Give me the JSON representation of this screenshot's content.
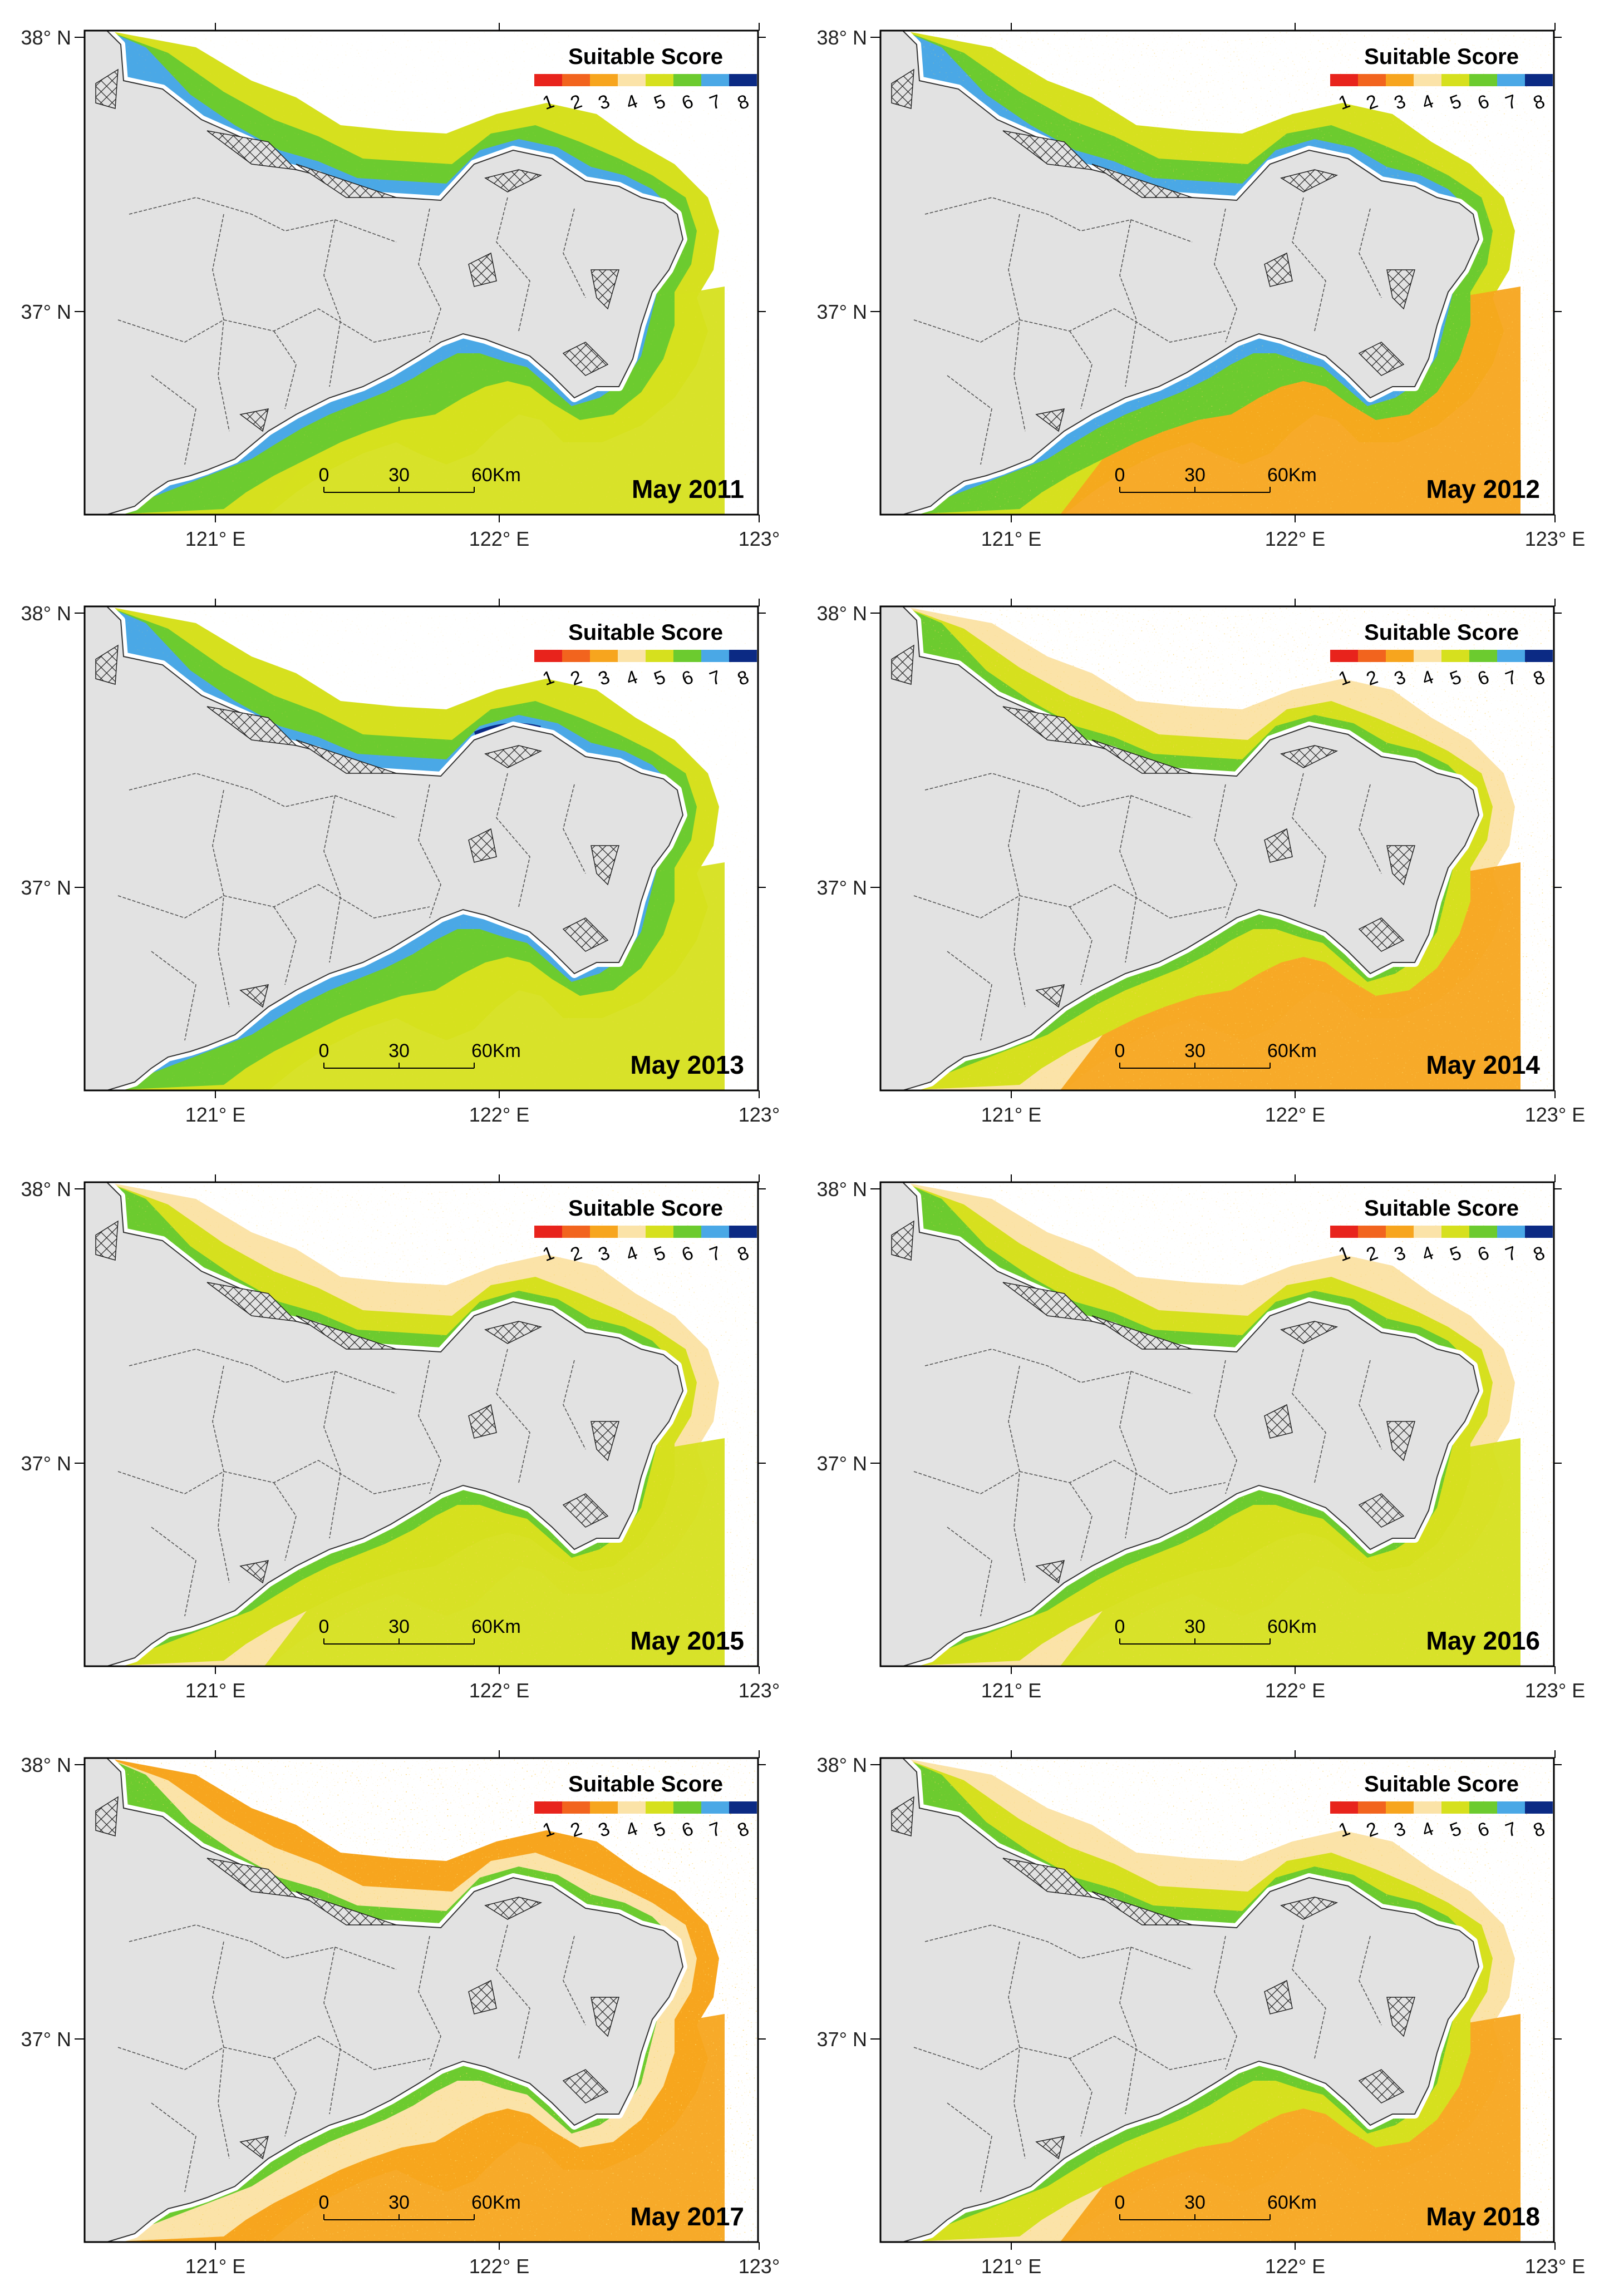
{
  "figure": {
    "panels": [
      {
        "id": "2011",
        "title": "May 2011",
        "pattern": "north-blue-south-yellow"
      },
      {
        "id": "2012",
        "title": "May 2012",
        "pattern": "north-blue-south-orange"
      },
      {
        "id": "2013",
        "title": "May 2013",
        "pattern": "north-darkblue-south-yellow"
      },
      {
        "id": "2014",
        "title": "May 2014",
        "pattern": "north-green-south-orange"
      },
      {
        "id": "2015",
        "title": "May 2015",
        "pattern": "north-green-south-yellow"
      },
      {
        "id": "2016",
        "title": "May 2016",
        "pattern": "north-green-south-yellow"
      },
      {
        "id": "2017",
        "title": "May 2017",
        "pattern": "north-orange-south-orange"
      },
      {
        "id": "2018",
        "title": "May 2018",
        "pattern": "north-green-south-orange"
      }
    ],
    "legend": {
      "title": "Suitable Score",
      "classes": [
        {
          "label": "1",
          "color": "#e8231c"
        },
        {
          "label": "2",
          "color": "#f2641e"
        },
        {
          "label": "3",
          "color": "#f7a51e"
        },
        {
          "label": "4",
          "color": "#fbe3a8"
        },
        {
          "label": "5",
          "color": "#d6e01e"
        },
        {
          "label": "6",
          "color": "#6ccb2f"
        },
        {
          "label": "7",
          "color": "#4aa8e6"
        },
        {
          "label": "8",
          "color": "#0b2a84"
        }
      ]
    },
    "scale_bar": {
      "labels": [
        "0",
        "30",
        "60Km"
      ]
    },
    "axes": {
      "left_lat_labels": [
        "38° N",
        "37° N"
      ],
      "bottom_lon_labels": [
        "121° E",
        "122° E",
        "123°"
      ],
      "bottom_lon_labels_right": [
        "121° E",
        "122° E",
        "123° E"
      ]
    },
    "colors": {
      "land": "#e2e2e2",
      "land_border": "#333333",
      "hatch": "#222222"
    }
  }
}
